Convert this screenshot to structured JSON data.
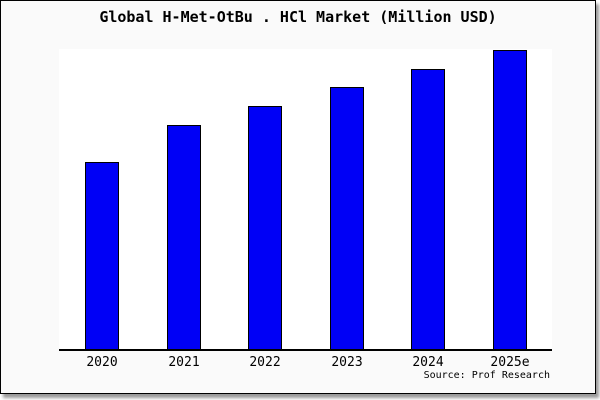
{
  "title": "Global H-Met-OtBu . HCl Market (Million USD)",
  "source_caption": "Source: Prof Research",
  "colors": {
    "bar_fill": "#0000F6",
    "bar_border": "#000000",
    "chart_background": "#FAFAFA",
    "plot_background": "#FFFFFF",
    "axis": "#000000",
    "text": "#000000",
    "shadow": "#999999"
  },
  "chart_data": {
    "type": "bar",
    "title": "Global H-Met-OtBu . HCl Market (Million USD)",
    "categories": [
      "2020",
      "2021",
      "2022",
      "2023",
      "2024",
      "2025e"
    ],
    "values": [
      100,
      120,
      130,
      140,
      150,
      160
    ],
    "value_note": "Y-axis unlabeled in image; values are a relative index read from bar heights (2020 = 100, exact ratio 1.0:1.2:1.3:1.4:1.5:1.6)",
    "xlabel": "",
    "ylabel": "",
    "ylim_relative": [
      0,
      160.5
    ],
    "grid": false,
    "legend": false,
    "bar_color": "#0000F6",
    "annotations": [
      "Source: Prof Research"
    ]
  }
}
